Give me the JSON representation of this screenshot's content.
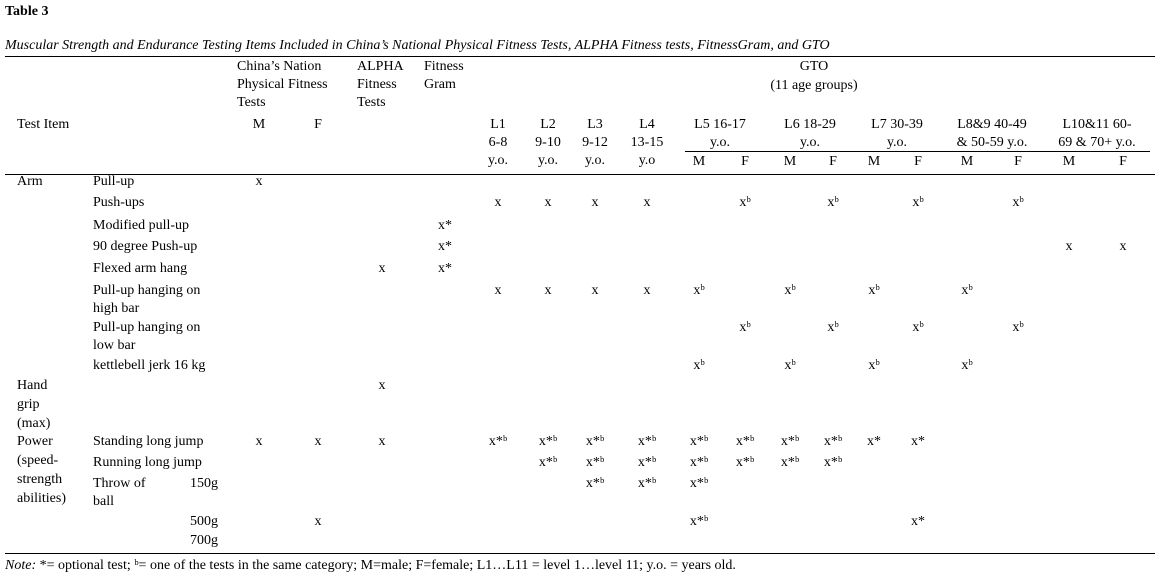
{
  "header": {
    "title": "Table 3",
    "caption": "Muscular Strength and Endurance Testing Items Included in China’s National Physical Fitness Tests, ALPHA Fitness tests, FitnessGram, and GTO"
  },
  "table": {
    "groups": {
      "china": {
        "lines": [
          "China’s Nation",
          "Physical Fitness",
          "Tests"
        ],
        "sub": [
          "M",
          "F"
        ]
      },
      "alpha": {
        "lines": [
          "ALPHA",
          "Fitness",
          "Tests"
        ]
      },
      "fitnessgram": {
        "lines": [
          "Fitness",
          "Gram"
        ]
      },
      "gto": {
        "lines": [
          "GTO",
          "(11 age groups)"
        ]
      }
    },
    "test_item": "Test Item",
    "levels": [
      {
        "lines": [
          "L1",
          "6-8",
          "y.o."
        ]
      },
      {
        "lines": [
          "L2",
          "9-10",
          "y.o."
        ]
      },
      {
        "lines": [
          "L3",
          "9-12",
          "y.o."
        ]
      },
      {
        "lines": [
          "L4",
          "13-15",
          "y.o"
        ]
      },
      {
        "lines": [
          "L5 16-17",
          "y.o."
        ],
        "sub": [
          "M",
          "F"
        ]
      },
      {
        "lines": [
          "L6 18-29",
          "y.o."
        ],
        "sub": [
          "M",
          "F"
        ]
      },
      {
        "lines": [
          "L7 30-39",
          "y.o."
        ],
        "sub": [
          "M",
          "F"
        ]
      },
      {
        "lines": [
          "L8&9 40-49",
          "& 50-59 y.o."
        ],
        "sub": [
          "M",
          "F"
        ]
      },
      {
        "lines": [
          "L10&11 60-",
          "69 & 70+ y.o."
        ],
        "sub": [
          "M",
          "F"
        ]
      }
    ],
    "rows": [
      {
        "group": [
          "Arm"
        ],
        "item": [
          "Pull-up"
        ],
        "cells": [
          "x",
          null,
          null,
          null,
          null,
          null,
          null,
          null,
          null,
          null,
          null,
          null,
          null,
          null,
          null,
          null,
          null,
          null
        ]
      },
      {
        "item": [
          "Push-ups"
        ],
        "cells": [
          null,
          null,
          null,
          null,
          "x",
          "x",
          "x",
          "x",
          null,
          "xᵇ",
          null,
          "xᵇ",
          null,
          "xᵇ",
          null,
          "xᵇ",
          null,
          null
        ]
      },
      {
        "item": [
          "Modified pull-up"
        ],
        "cells": [
          null,
          null,
          null,
          "x*",
          null,
          null,
          null,
          null,
          null,
          null,
          null,
          null,
          null,
          null,
          null,
          null,
          null,
          null
        ]
      },
      {
        "item": [
          "90 degree Push-up"
        ],
        "cells": [
          null,
          null,
          null,
          "x*",
          null,
          null,
          null,
          null,
          null,
          null,
          null,
          null,
          null,
          null,
          null,
          null,
          "x",
          "x"
        ]
      },
      {
        "item": [
          "Flexed arm hang"
        ],
        "cells": [
          null,
          null,
          "x",
          "x*",
          null,
          null,
          null,
          null,
          null,
          null,
          null,
          null,
          null,
          null,
          null,
          null,
          null,
          null
        ]
      },
      {
        "item": [
          "Pull-up hanging on",
          "high bar"
        ],
        "cells": [
          null,
          null,
          null,
          null,
          "x",
          "x",
          "x",
          "x",
          "xᵇ",
          null,
          "xᵇ",
          null,
          "xᵇ",
          null,
          "xᵇ",
          null,
          null,
          null
        ]
      },
      {
        "item": [
          "Pull-up hanging on",
          "low bar"
        ],
        "cells": [
          null,
          null,
          null,
          null,
          null,
          null,
          null,
          null,
          null,
          "xᵇ",
          null,
          "xᵇ",
          null,
          "xᵇ",
          null,
          "xᵇ",
          null,
          null
        ]
      },
      {
        "item": [
          "kettlebell jerk 16 kg"
        ],
        "cells": [
          null,
          null,
          null,
          null,
          null,
          null,
          null,
          null,
          "xᵇ",
          null,
          "xᵇ",
          null,
          "xᵇ",
          null,
          "xᵇ",
          null,
          null,
          null
        ]
      },
      {
        "group": [
          "Hand",
          "grip",
          "(max)"
        ],
        "cells": [
          null,
          null,
          "x",
          null,
          null,
          null,
          null,
          null,
          null,
          null,
          null,
          null,
          null,
          null,
          null,
          null,
          null,
          null
        ]
      },
      {
        "group": [
          "Power",
          "(speed-",
          "strength",
          "abilities)"
        ],
        "item": [
          "Standing long jump"
        ],
        "cells": [
          "x",
          "x",
          "x",
          null,
          "x*ᵇ",
          "x*ᵇ",
          "x*ᵇ",
          "x*ᵇ",
          "x*ᵇ",
          "x*ᵇ",
          "x*ᵇ",
          "x*ᵇ",
          "x*",
          "x*",
          null,
          null,
          null,
          null
        ]
      },
      {
        "item": [
          "Running long jump"
        ],
        "cells": [
          null,
          null,
          null,
          null,
          null,
          "x*ᵇ",
          "x*ᵇ",
          "x*ᵇ",
          "x*ᵇ",
          "x*ᵇ",
          "x*ᵇ",
          "x*ᵇ",
          null,
          null,
          null,
          null,
          null,
          null
        ]
      },
      {
        "item": [
          "Throw of",
          "ball"
        ],
        "weight": [
          "150g"
        ],
        "cells": [
          null,
          null,
          null,
          null,
          null,
          null,
          "x*ᵇ",
          "x*ᵇ",
          "x*ᵇ",
          null,
          null,
          null,
          null,
          null,
          null,
          null,
          null,
          null
        ]
      },
      {
        "weight": [
          "500g",
          "700g"
        ],
        "cells": [
          null,
          "x",
          null,
          null,
          null,
          null,
          null,
          null,
          "x*ᵇ",
          null,
          null,
          null,
          null,
          "x*",
          null,
          null,
          null,
          null
        ]
      }
    ]
  },
  "note": {
    "label": "Note:",
    "text": "*= optional test; ᵇ= one of the tests in the same category; M=male; F=female; L1…L11 = level 1…level 11; y.o. = years old."
  }
}
